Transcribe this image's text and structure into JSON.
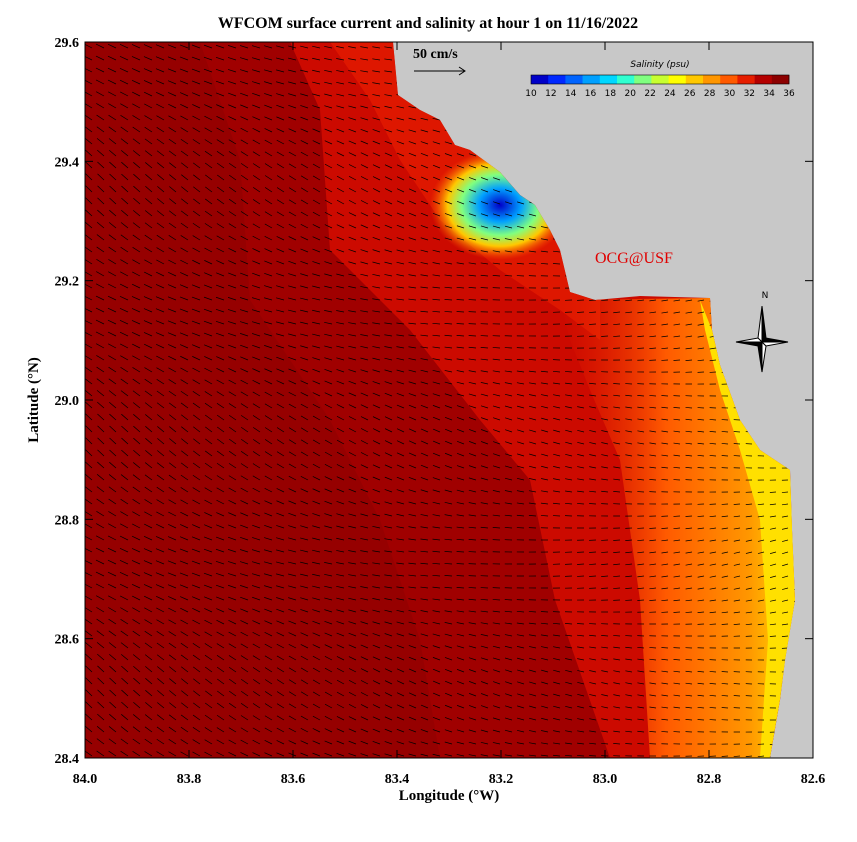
{
  "map": {
    "title": "WFCOM surface current and salinity at hour 1 on 11/16/2022",
    "xlabel": "Longitude (°W)",
    "ylabel": "Latitude (°N)",
    "xlim": [
      84.0,
      82.6
    ],
    "xticks": [
      {
        "value": 84.0,
        "label": "84.0"
      },
      83.8,
      83.6,
      83.4,
      83.2,
      {
        "value": 83.0,
        "label": "83.0"
      },
      82.8,
      82.6
    ],
    "ylim": [
      28.4,
      29.6
    ],
    "yticks": [
      28.4,
      28.6,
      28.8,
      {
        "value": 29.0,
        "label": "29.0"
      },
      29.2,
      29.4,
      29.6
    ],
    "scale_arrow_label": "50 cm/s",
    "credit": "OCG@USF",
    "north_label": "N",
    "colorbar": {
      "title": "Salinity (psu)",
      "lim": [
        10,
        36
      ],
      "ticks": [
        10,
        12,
        14,
        16,
        18,
        20,
        22,
        24,
        26,
        28,
        30,
        32,
        34,
        36
      ],
      "colors": [
        "#0000c8",
        "#0028ff",
        "#0064ff",
        "#00a0ff",
        "#00d7ff",
        "#30ffd0",
        "#80ff80",
        "#c8ff30",
        "#ffff00",
        "#ffc800",
        "#ff9600",
        "#ff5a00",
        "#e61e00",
        "#b40000",
        "#8c0000"
      ]
    }
  }
}
